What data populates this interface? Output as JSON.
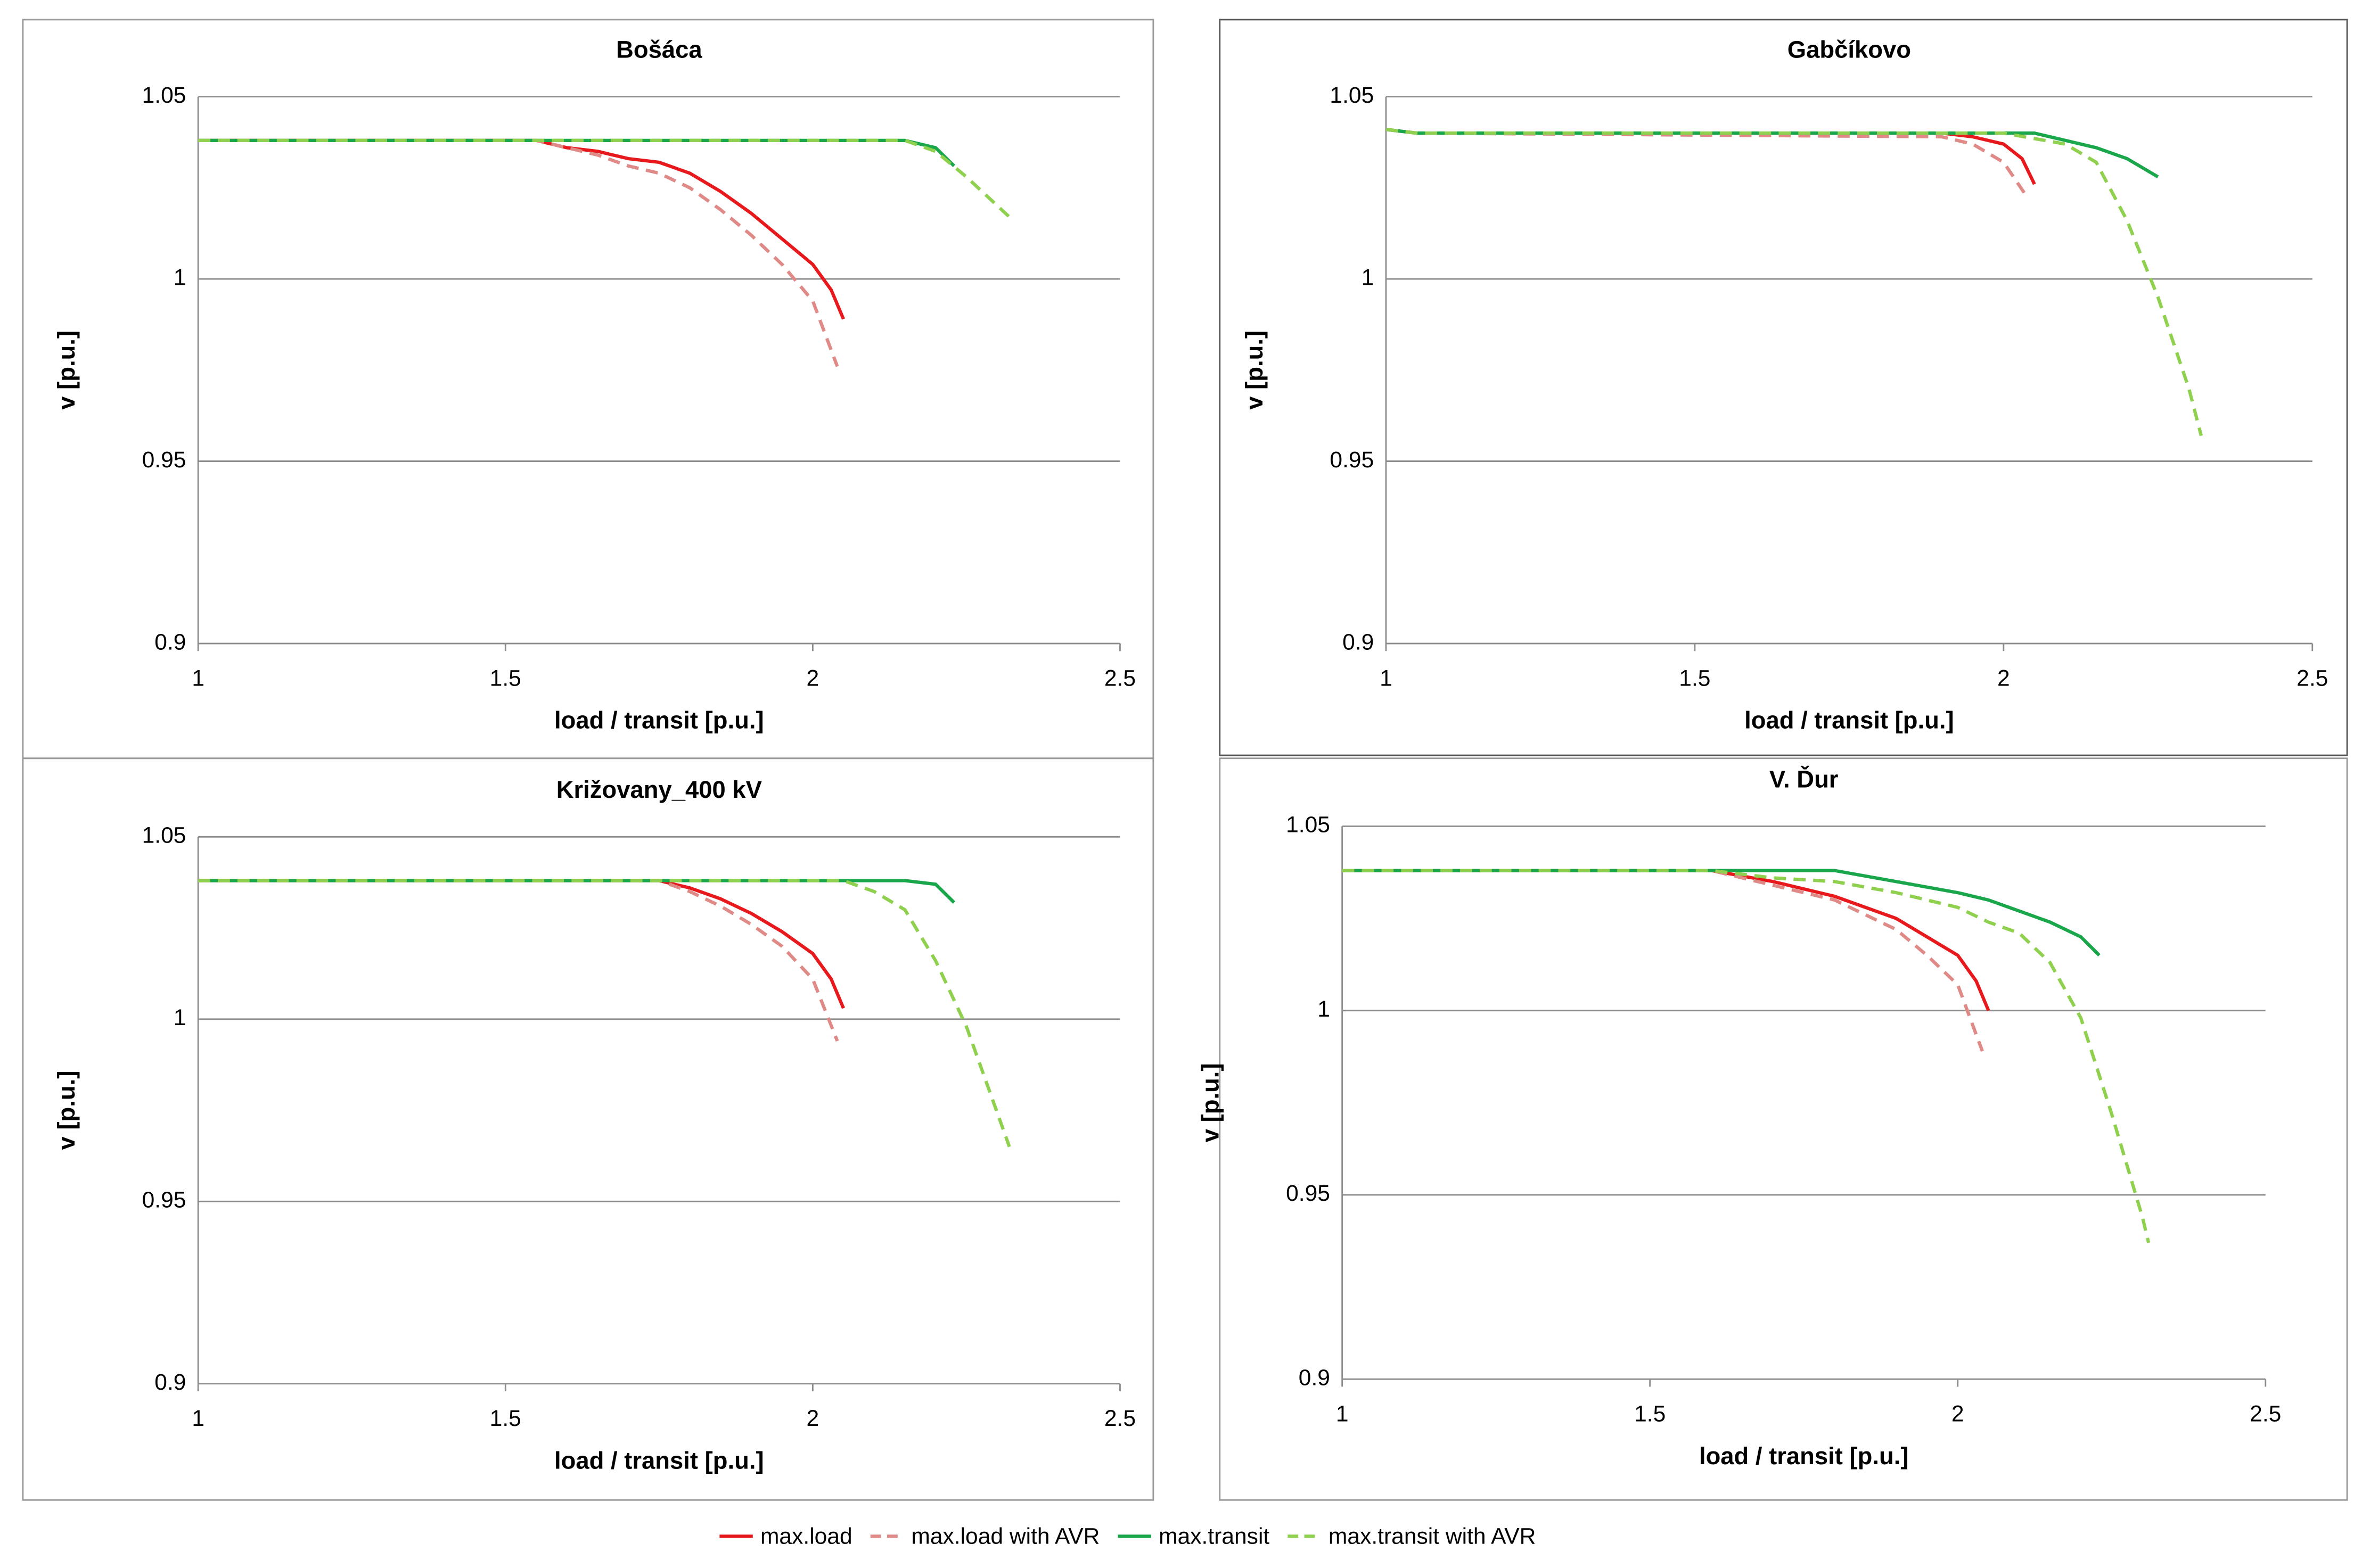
{
  "chart_data": [
    {
      "type": "line",
      "title": "Bošáca",
      "x_label": "load / transit  [p.u.]",
      "y_label": "v  [p.u.]",
      "xlim": [
        1,
        2.5
      ],
      "xticks": [
        1,
        1.5,
        2,
        2.5
      ],
      "ylim": [
        0.9,
        1.05
      ],
      "yticks": [
        0.9,
        0.95,
        1,
        1.05
      ],
      "grid": true,
      "series": [
        {
          "name": "max.load",
          "color": "#e8191c",
          "dashed": false,
          "x": [
            1,
            1.55,
            1.6,
            1.65,
            1.7,
            1.75,
            1.8,
            1.85,
            1.9,
            1.95,
            2.0,
            2.03,
            2.05
          ],
          "values": [
            1.038,
            1.038,
            1.036,
            1.035,
            1.033,
            1.032,
            1.029,
            1.024,
            1.018,
            1.011,
            1.004,
            0.997,
            0.989
          ]
        },
        {
          "name": "max.load with AVR",
          "color": "#e08a88",
          "dashed": true,
          "x": [
            1,
            1.55,
            1.6,
            1.65,
            1.7,
            1.75,
            1.8,
            1.85,
            1.9,
            1.95,
            2.0,
            2.02,
            2.04
          ],
          "values": [
            1.038,
            1.038,
            1.036,
            1.034,
            1.031,
            1.029,
            1.025,
            1.019,
            1.012,
            1.004,
            0.994,
            0.985,
            0.976
          ]
        },
        {
          "name": "max.transit",
          "color": "#1aa64a",
          "dashed": false,
          "x": [
            1,
            2.15,
            2.2,
            2.23
          ],
          "values": [
            1.038,
            1.038,
            1.036,
            1.031
          ]
        },
        {
          "name": "max.transit with AVR",
          "color": "#8fd14f",
          "dashed": true,
          "x": [
            1,
            2.15,
            2.2,
            2.25,
            2.32
          ],
          "values": [
            1.038,
            1.038,
            1.035,
            1.028,
            1.017
          ]
        }
      ]
    },
    {
      "type": "line",
      "title": "Gabčíkovo",
      "x_label": "load / transit  [p.u.]",
      "y_label": "v  [p.u.]",
      "xlim": [
        1,
        2.5
      ],
      "xticks": [
        1,
        1.5,
        2,
        2.5
      ],
      "ylim": [
        0.9,
        1.05
      ],
      "yticks": [
        0.9,
        0.95,
        1,
        1.05
      ],
      "grid": true,
      "series": [
        {
          "name": "max.load",
          "color": "#e8191c",
          "dashed": false,
          "x": [
            1,
            1.05,
            1.9,
            1.95,
            2.0,
            2.03,
            2.05
          ],
          "values": [
            1.041,
            1.04,
            1.04,
            1.039,
            1.037,
            1.033,
            1.026
          ]
        },
        {
          "name": "max.load with AVR",
          "color": "#e08a88",
          "dashed": true,
          "x": [
            1,
            1.05,
            1.9,
            1.95,
            2.0,
            2.04
          ],
          "values": [
            1.041,
            1.04,
            1.039,
            1.037,
            1.032,
            1.022
          ]
        },
        {
          "name": "max.transit",
          "color": "#1aa64a",
          "dashed": false,
          "x": [
            1,
            1.05,
            2.05,
            2.1,
            2.15,
            2.2,
            2.25
          ],
          "values": [
            1.041,
            1.04,
            1.04,
            1.038,
            1.036,
            1.033,
            1.028
          ]
        },
        {
          "name": "max.transit with AVR",
          "color": "#8fd14f",
          "dashed": true,
          "x": [
            1,
            1.05,
            2.0,
            2.1,
            2.15,
            2.2,
            2.25,
            2.3,
            2.32
          ],
          "values": [
            1.041,
            1.04,
            1.04,
            1.037,
            1.032,
            1.016,
            0.995,
            0.97,
            0.957
          ]
        }
      ]
    },
    {
      "type": "line",
      "title": "Križovany_400 kV",
      "x_label": "load / transit  [p.u.]",
      "y_label": "v  [p.u.]",
      "xlim": [
        1,
        2.5
      ],
      "xticks": [
        1,
        1.5,
        2,
        2.5
      ],
      "ylim": [
        0.9,
        1.05
      ],
      "yticks": [
        0.9,
        0.95,
        1,
        1.05
      ],
      "grid": true,
      "series": [
        {
          "name": "max.load",
          "color": "#e8191c",
          "dashed": false,
          "x": [
            1,
            1.75,
            1.8,
            1.85,
            1.9,
            1.95,
            2.0,
            2.03,
            2.05
          ],
          "values": [
            1.038,
            1.038,
            1.036,
            1.033,
            1.029,
            1.024,
            1.018,
            1.011,
            1.003
          ]
        },
        {
          "name": "max.load with AVR",
          "color": "#e08a88",
          "dashed": true,
          "x": [
            1,
            1.75,
            1.8,
            1.85,
            1.9,
            1.95,
            2.0,
            2.04
          ],
          "values": [
            1.038,
            1.038,
            1.035,
            1.031,
            1.026,
            1.02,
            1.011,
            0.994
          ]
        },
        {
          "name": "max.transit",
          "color": "#1aa64a",
          "dashed": false,
          "x": [
            1,
            2.15,
            2.2,
            2.23
          ],
          "values": [
            1.038,
            1.038,
            1.037,
            1.032
          ]
        },
        {
          "name": "max.transit with AVR",
          "color": "#8fd14f",
          "dashed": true,
          "x": [
            1,
            2.05,
            2.1,
            2.15,
            2.2,
            2.25,
            2.32
          ],
          "values": [
            1.038,
            1.038,
            1.035,
            1.03,
            1.016,
            0.998,
            0.965
          ]
        }
      ]
    },
    {
      "type": "line",
      "title": "V. Ďur",
      "x_label": "load / transit  [p.u.]",
      "y_label": "v  [p.u.]",
      "xlim": [
        1,
        2.5
      ],
      "xticks": [
        1,
        1.5,
        2,
        2.5
      ],
      "ylim": [
        0.9,
        1.05
      ],
      "yticks": [
        0.9,
        0.95,
        1,
        1.05
      ],
      "grid": true,
      "series": [
        {
          "name": "max.load",
          "color": "#e8191c",
          "dashed": false,
          "x": [
            1,
            1.6,
            1.7,
            1.8,
            1.9,
            1.95,
            2.0,
            2.03,
            2.05
          ],
          "values": [
            1.038,
            1.038,
            1.035,
            1.031,
            1.025,
            1.02,
            1.015,
            1.008,
            1.0
          ]
        },
        {
          "name": "max.load with AVR",
          "color": "#e08a88",
          "dashed": true,
          "x": [
            1,
            1.6,
            1.7,
            1.8,
            1.9,
            1.95,
            2.0,
            2.04
          ],
          "values": [
            1.038,
            1.038,
            1.034,
            1.03,
            1.022,
            1.015,
            1.007,
            0.989
          ]
        },
        {
          "name": "max.transit",
          "color": "#1aa64a",
          "dashed": false,
          "x": [
            1,
            1.8,
            1.9,
            2.0,
            2.05,
            2.1,
            2.15,
            2.2,
            2.23
          ],
          "values": [
            1.038,
            1.038,
            1.035,
            1.032,
            1.03,
            1.027,
            1.024,
            1.02,
            1.015
          ]
        },
        {
          "name": "max.transit with AVR",
          "color": "#8fd14f",
          "dashed": true,
          "x": [
            1,
            1.6,
            1.7,
            1.8,
            1.9,
            2.0,
            2.05,
            2.1,
            2.15,
            2.2,
            2.25,
            2.3,
            2.31
          ],
          "values": [
            1.038,
            1.038,
            1.036,
            1.035,
            1.032,
            1.028,
            1.024,
            1.021,
            1.013,
            0.998,
            0.972,
            0.944,
            0.937
          ]
        }
      ]
    }
  ]
}
